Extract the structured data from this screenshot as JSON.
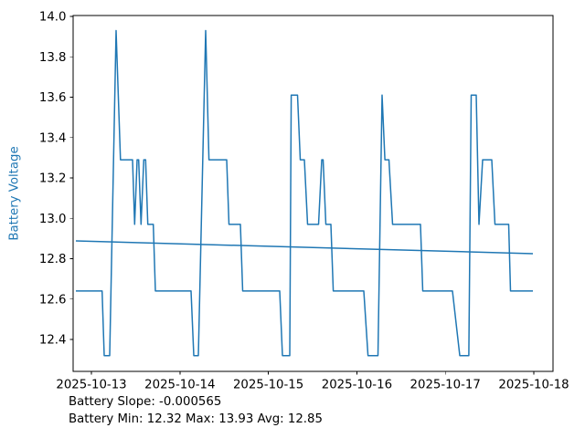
{
  "figure": {
    "background": "#ffffff"
  },
  "colors": {
    "line": "#1f77b4",
    "axis": "#000000",
    "tick_text": "#000000",
    "ylabel_text": "#1f77b4"
  },
  "footer": {
    "slope_line": "Battery Slope: -0.000565",
    "stats_line": "Battery Min: 12.32 Max: 13.93 Avg: 12.85"
  },
  "chart_data": {
    "type": "line",
    "title": "",
    "xlabel": "",
    "ylabel": "Battery Voltage",
    "legend": "none",
    "grid": false,
    "x_unit": "days since 2025-10-13 00:00",
    "xlim_days": [
      -0.207,
      5.217
    ],
    "ylim": [
      12.24,
      14.0
    ],
    "y_ticks": [
      12.4,
      12.6,
      12.8,
      13.0,
      13.2,
      13.4,
      13.6,
      13.8,
      14.0
    ],
    "x_ticks": [
      {
        "t": 0,
        "label": "2025-10-13"
      },
      {
        "t": 1,
        "label": "2025-10-14"
      },
      {
        "t": 2,
        "label": "2025-10-15"
      },
      {
        "t": 3,
        "label": "2025-10-16"
      },
      {
        "t": 4,
        "label": "2025-10-17"
      },
      {
        "t": 5,
        "label": "2025-10-18"
      }
    ],
    "stats": {
      "slope": -0.000565,
      "min": 12.32,
      "max": 13.93,
      "avg": 12.85
    },
    "series": [
      {
        "name": "battery-voltage",
        "color": "#1f77b4",
        "width": 1.5,
        "points": [
          [
            -0.176,
            12.64
          ],
          [
            0.121,
            12.64
          ],
          [
            0.145,
            12.32
          ],
          [
            0.207,
            12.32
          ],
          [
            0.279,
            13.93
          ],
          [
            0.328,
            13.29
          ],
          [
            0.465,
            13.29
          ],
          [
            0.489,
            12.97
          ],
          [
            0.517,
            13.29
          ],
          [
            0.534,
            13.29
          ],
          [
            0.561,
            12.97
          ],
          [
            0.592,
            13.29
          ],
          [
            0.613,
            13.29
          ],
          [
            0.637,
            12.97
          ],
          [
            0.699,
            12.97
          ],
          [
            0.723,
            12.64
          ],
          [
            1.126,
            12.64
          ],
          [
            1.157,
            12.32
          ],
          [
            1.209,
            12.32
          ],
          [
            1.291,
            13.93
          ],
          [
            1.328,
            13.29
          ],
          [
            1.529,
            13.29
          ],
          [
            1.555,
            12.97
          ],
          [
            1.684,
            12.97
          ],
          [
            1.71,
            12.64
          ],
          [
            2.128,
            12.64
          ],
          [
            2.159,
            12.32
          ],
          [
            2.242,
            12.32
          ],
          [
            2.258,
            13.61
          ],
          [
            2.33,
            13.61
          ],
          [
            2.361,
            13.29
          ],
          [
            2.407,
            13.29
          ],
          [
            2.443,
            12.97
          ],
          [
            2.567,
            12.97
          ],
          [
            2.603,
            13.29
          ],
          [
            2.619,
            13.29
          ],
          [
            2.65,
            12.97
          ],
          [
            2.707,
            12.97
          ],
          [
            2.733,
            12.64
          ],
          [
            3.079,
            12.64
          ],
          [
            3.126,
            12.32
          ],
          [
            3.239,
            12.32
          ],
          [
            3.285,
            13.61
          ],
          [
            3.317,
            13.29
          ],
          [
            3.363,
            13.29
          ],
          [
            3.404,
            12.97
          ],
          [
            3.719,
            12.97
          ],
          [
            3.745,
            12.64
          ],
          [
            4.081,
            12.64
          ],
          [
            4.163,
            12.32
          ],
          [
            4.266,
            12.32
          ],
          [
            4.292,
            13.61
          ],
          [
            4.349,
            13.61
          ],
          [
            4.38,
            12.97
          ],
          [
            4.421,
            13.29
          ],
          [
            4.525,
            13.29
          ],
          [
            4.561,
            12.97
          ],
          [
            4.716,
            12.97
          ],
          [
            4.737,
            12.64
          ],
          [
            4.99,
            12.64
          ]
        ]
      },
      {
        "name": "battery-trend",
        "color": "#1f77b4",
        "width": 1.5,
        "points": [
          [
            -0.176,
            12.888
          ],
          [
            4.99,
            12.825
          ]
        ]
      }
    ]
  }
}
